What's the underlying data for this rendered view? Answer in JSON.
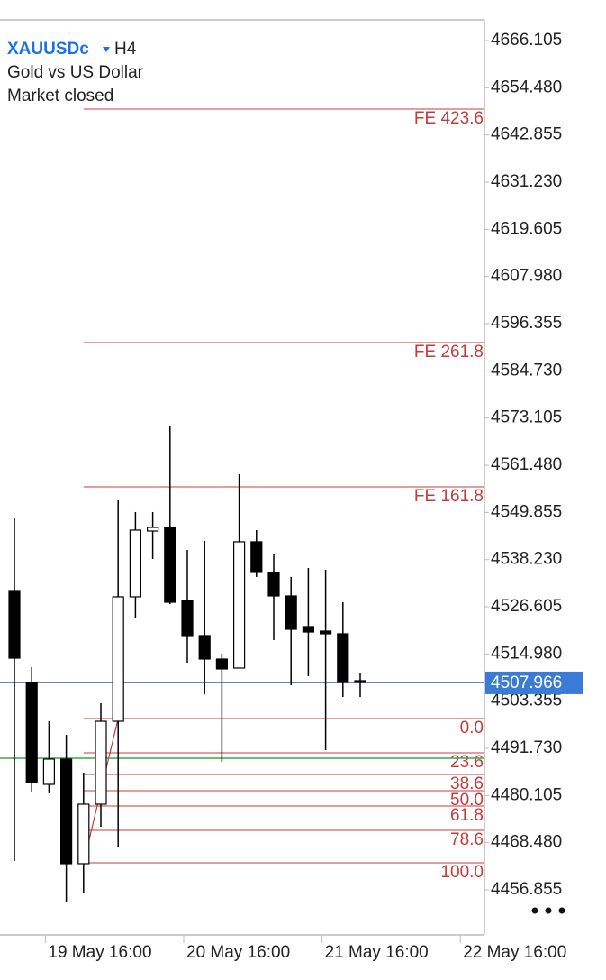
{
  "header": {
    "symbol": "XAUUSDc",
    "timeframe": "H4",
    "description": "Gold vs US Dollar",
    "status": "Market closed"
  },
  "chart_data": {
    "type": "candlestick",
    "categories": [
      null,
      null,
      "19 May 16:00",
      null,
      null,
      null,
      null,
      null,
      null,
      null,
      "20 May 16:00",
      null,
      null,
      null,
      null,
      null,
      null,
      null,
      "21 May 16:00",
      null,
      null,
      null,
      null,
      null,
      null,
      null,
      "22 May 16:00"
    ],
    "open": [
      4530.61,
      4507.96,
      4482.86,
      4489.08,
      4463.31,
      4477.97,
      4498.4,
      4529.06,
      4545.27,
      4546.16,
      4528.17,
      4519.51,
      4513.73,
      4511.51,
      4542.61,
      4535.06,
      4529.28,
      4521.73,
      4520.62,
      4519.95,
      4508.4,
      null,
      null,
      null,
      null,
      null,
      null
    ],
    "high": [
      4548.38,
      4511.73,
      4498.4,
      4495.07,
      4485.74,
      4502.85,
      4552.82,
      4549.94,
      4549.94,
      4571.04,
      4540.61,
      4542.83,
      4515.06,
      4559.27,
      4545.5,
      4539.5,
      4533.95,
      4536.16,
      4535.72,
      4527.72,
      4510.18,
      null,
      null,
      null,
      null,
      null,
      null
    ],
    "low": [
      4463.98,
      4481.08,
      4480.63,
      4453.76,
      4456.2,
      4472.42,
      4467.31,
      4523.94,
      4538.39,
      4527.28,
      4512.84,
      4505.07,
      4488.41,
      4511.51,
      4533.95,
      4518.4,
      4507.29,
      4509.51,
      4491.3,
      4504.4,
      4504.4,
      null,
      null,
      null,
      null,
      null,
      null
    ],
    "close": [
      4513.95,
      4483.3,
      4489.08,
      4463.31,
      4477.97,
      4498.4,
      4529.06,
      4545.5,
      4546.16,
      4527.72,
      4519.51,
      4513.73,
      4511.29,
      4542.61,
      4535.06,
      4529.28,
      4521.06,
      4520.39,
      4519.95,
      4507.96,
      4507.966,
      null,
      null,
      null,
      null,
      null,
      null
    ],
    "bull_color": "#ffffff",
    "bear_color": "#000000",
    "ylim": [
      4445.76,
      4671.21
    ],
    "yticks": [
      4666.105,
      {
        "value": 4654.48,
        "label": "4654.480"
      },
      4642.855,
      {
        "value": 4631.23,
        "label": "4631.230"
      },
      4619.605,
      {
        "value": 4607.98,
        "label": "4607.980"
      },
      4596.355,
      {
        "value": 4584.73,
        "label": "4584.730"
      },
      4573.105,
      {
        "value": 4561.48,
        "label": "4561.480"
      },
      4549.855,
      {
        "value": 4538.23,
        "label": "4538.230"
      },
      4526.605,
      {
        "value": 4514.98,
        "label": "4514.980"
      },
      4503.355,
      {
        "value": 4491.73,
        "label": "4491.730"
      },
      4480.105,
      {
        "value": 4468.48,
        "label": "4468.480"
      },
      4456.855
    ],
    "current_price": 4507.966,
    "current_price_color": "#3a7bd5",
    "horizontal_line": {
      "value": 4489.3,
      "color": "#3aa845"
    },
    "fibo_color": "#c43b3b",
    "retracement": [
      {
        "label": "0.0",
        "value": 4499.07
      },
      {
        "label": "23.6",
        "value": 4490.63
      },
      {
        "label": "38.6",
        "value": 4485.3
      },
      {
        "label": "50.0",
        "value": 4481.3
      },
      {
        "label": "61.8",
        "value": 4477.52
      },
      {
        "label": "78.6",
        "value": 4471.52
      },
      {
        "label": "100.0",
        "value": 4463.53
      }
    ],
    "expansion": [
      {
        "label": "FE 161.8",
        "value": 4556.16
      },
      {
        "label": "FE 261.8",
        "value": 4591.69
      },
      {
        "label": "FE 423.6",
        "value": 4649.22
      }
    ]
  }
}
